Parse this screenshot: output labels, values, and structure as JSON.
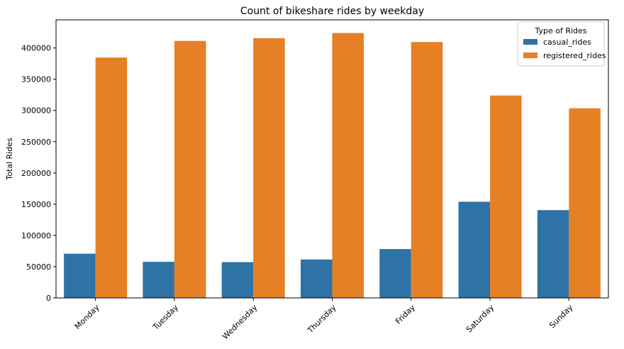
{
  "chart_data": {
    "type": "bar",
    "title": "Count of bikeshare rides by weekday",
    "xlabel": "",
    "ylabel": "Total Rides",
    "categories": [
      "Monday",
      "Tuesday",
      "Wednesday",
      "Thursday",
      "Friday",
      "Saturday",
      "Sunday"
    ],
    "series": [
      {
        "name": "casual_rides",
        "color": "#2e72a6",
        "values": [
          70800,
          57800,
          57300,
          61500,
          78200,
          153900,
          140500
        ]
      },
      {
        "name": "registered_rides",
        "color": "#e58025",
        "values": [
          384700,
          411300,
          415700,
          423900,
          409500,
          323900,
          303500
        ]
      }
    ],
    "ylim": [
      0,
      445000
    ],
    "yticks": [
      0,
      50000,
      100000,
      150000,
      200000,
      250000,
      300000,
      350000,
      400000
    ],
    "grid": false,
    "legend": {
      "title": "Type of Rides",
      "placement": "top-right"
    }
  }
}
